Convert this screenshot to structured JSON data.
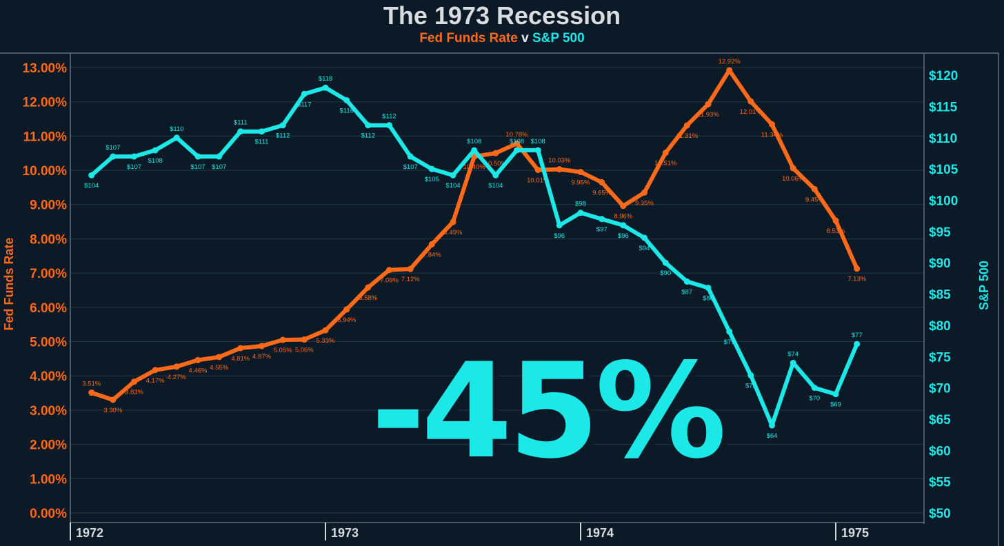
{
  "title": "The 1973 Recession",
  "subtitle": {
    "series1": "Fed Funds Rate",
    "sep": "v",
    "series2": "S&P 500"
  },
  "overlay": "-45%",
  "colors": {
    "background": "#0b1a26",
    "fed": "#ff6a1a",
    "sp": "#1de8e8",
    "grid": "#1f3a44",
    "axis": "#b9c2c8",
    "title": "#d9dde0"
  },
  "chart_data": {
    "type": "line",
    "title": "The 1973 Recession",
    "subtitle": "Fed Funds Rate v S&P 500",
    "xlabel": "",
    "x_ticks": [
      "1972",
      "1973",
      "1974",
      "1975"
    ],
    "x_range": [
      1972.0,
      1975.25
    ],
    "grid": true,
    "y_left": {
      "label": "Fed Funds Rate",
      "range": [
        0,
        13.5
      ],
      "ticks": [
        "0.00%",
        "1.00%",
        "2.00%",
        "3.00%",
        "4.00%",
        "5.00%",
        "6.00%",
        "7.00%",
        "8.00%",
        "9.00%",
        "10.00%",
        "11.00%",
        "12.00%",
        "13.00%"
      ]
    },
    "y_right": {
      "label": "S&P 500",
      "range": [
        49,
        121.5
      ],
      "ticks": [
        "$50",
        "$55",
        "$60",
        "$65",
        "$70",
        "$75",
        "$80",
        "$85",
        "$90",
        "$95",
        "$100",
        "$105",
        "$110",
        "$115",
        "$120"
      ]
    },
    "series": [
      {
        "name": "Fed Funds Rate",
        "axis": "left",
        "x": [
          1972.083,
          1972.167,
          1972.25,
          1972.333,
          1972.417,
          1972.5,
          1972.583,
          1972.667,
          1972.75,
          1972.833,
          1972.917,
          1973.0,
          1973.083,
          1973.167,
          1973.25,
          1973.333,
          1973.417,
          1973.5,
          1973.583,
          1973.667,
          1973.75,
          1973.833,
          1973.917,
          1974.0,
          1974.083,
          1974.167,
          1974.25,
          1974.333,
          1974.417,
          1974.5,
          1974.583,
          1974.667,
          1974.75,
          1974.833,
          1974.917,
          1975.0,
          1975.083
        ],
        "y": [
          3.51,
          3.3,
          3.83,
          4.17,
          4.27,
          4.46,
          4.55,
          4.81,
          4.87,
          5.05,
          5.06,
          5.33,
          5.94,
          6.58,
          7.09,
          7.12,
          7.84,
          8.49,
          10.4,
          10.5,
          10.78,
          10.01,
          10.03,
          9.95,
          9.65,
          8.96,
          9.35,
          10.51,
          11.31,
          11.93,
          12.92,
          12.01,
          11.34,
          10.06,
          9.45,
          8.53,
          7.13
        ],
        "labels": [
          "3.51%",
          "3.30%",
          "3.83%",
          "4.17%",
          "4.27%",
          "4.46%",
          "4.55%",
          "4.81%",
          "4.87%",
          "5.05%",
          "5.06%",
          "5.33%",
          "5.94%",
          "6.58%",
          "7.09%",
          "7.12%",
          "7.84%",
          "8.49%",
          "10.40%",
          "10.50%",
          "10.78%",
          "10.01%",
          "10.03%",
          "9.95%",
          "9.65%",
          "8.96%",
          "9.35%",
          "10.51%",
          "11.31%",
          "11.93%",
          "12.92%",
          "12.01%",
          "11.34%",
          "10.06%",
          "9.45%",
          "8.53%",
          "7.13%"
        ]
      },
      {
        "name": "S&P 500",
        "axis": "right",
        "x": [
          1972.083,
          1972.167,
          1972.25,
          1972.333,
          1972.417,
          1972.5,
          1972.583,
          1972.667,
          1972.75,
          1972.833,
          1972.917,
          1973.0,
          1973.083,
          1973.167,
          1973.25,
          1973.333,
          1973.417,
          1973.5,
          1973.583,
          1973.667,
          1973.75,
          1973.833,
          1973.917,
          1974.0,
          1974.083,
          1974.167,
          1974.25,
          1974.333,
          1974.417,
          1974.5,
          1974.583,
          1974.667,
          1974.75,
          1974.833,
          1974.917,
          1975.0,
          1975.083
        ],
        "y": [
          104,
          107,
          107,
          108,
          110,
          107,
          107,
          111,
          111,
          112,
          117,
          118,
          116,
          112,
          112,
          107,
          105,
          104,
          108,
          104,
          108,
          108,
          96,
          98,
          97,
          96,
          94,
          90,
          87,
          86,
          79,
          72,
          64,
          74,
          70,
          69,
          77
        ],
        "labels": [
          "$104",
          "$107",
          "$107",
          "$108",
          "$110",
          "$107",
          "$107",
          "$111",
          "$111",
          "$112",
          "$117",
          "$118",
          "$116",
          "$112",
          "$112",
          "$107",
          "$105",
          "$104",
          "$108",
          "$104",
          "$108",
          "$108",
          "$96",
          "$98",
          "$97",
          "$96",
          "$94",
          "$90",
          "$87",
          "$86",
          "$79",
          "$72",
          "$64",
          "$74",
          "$70",
          "$69",
          "$77"
        ]
      }
    ]
  }
}
